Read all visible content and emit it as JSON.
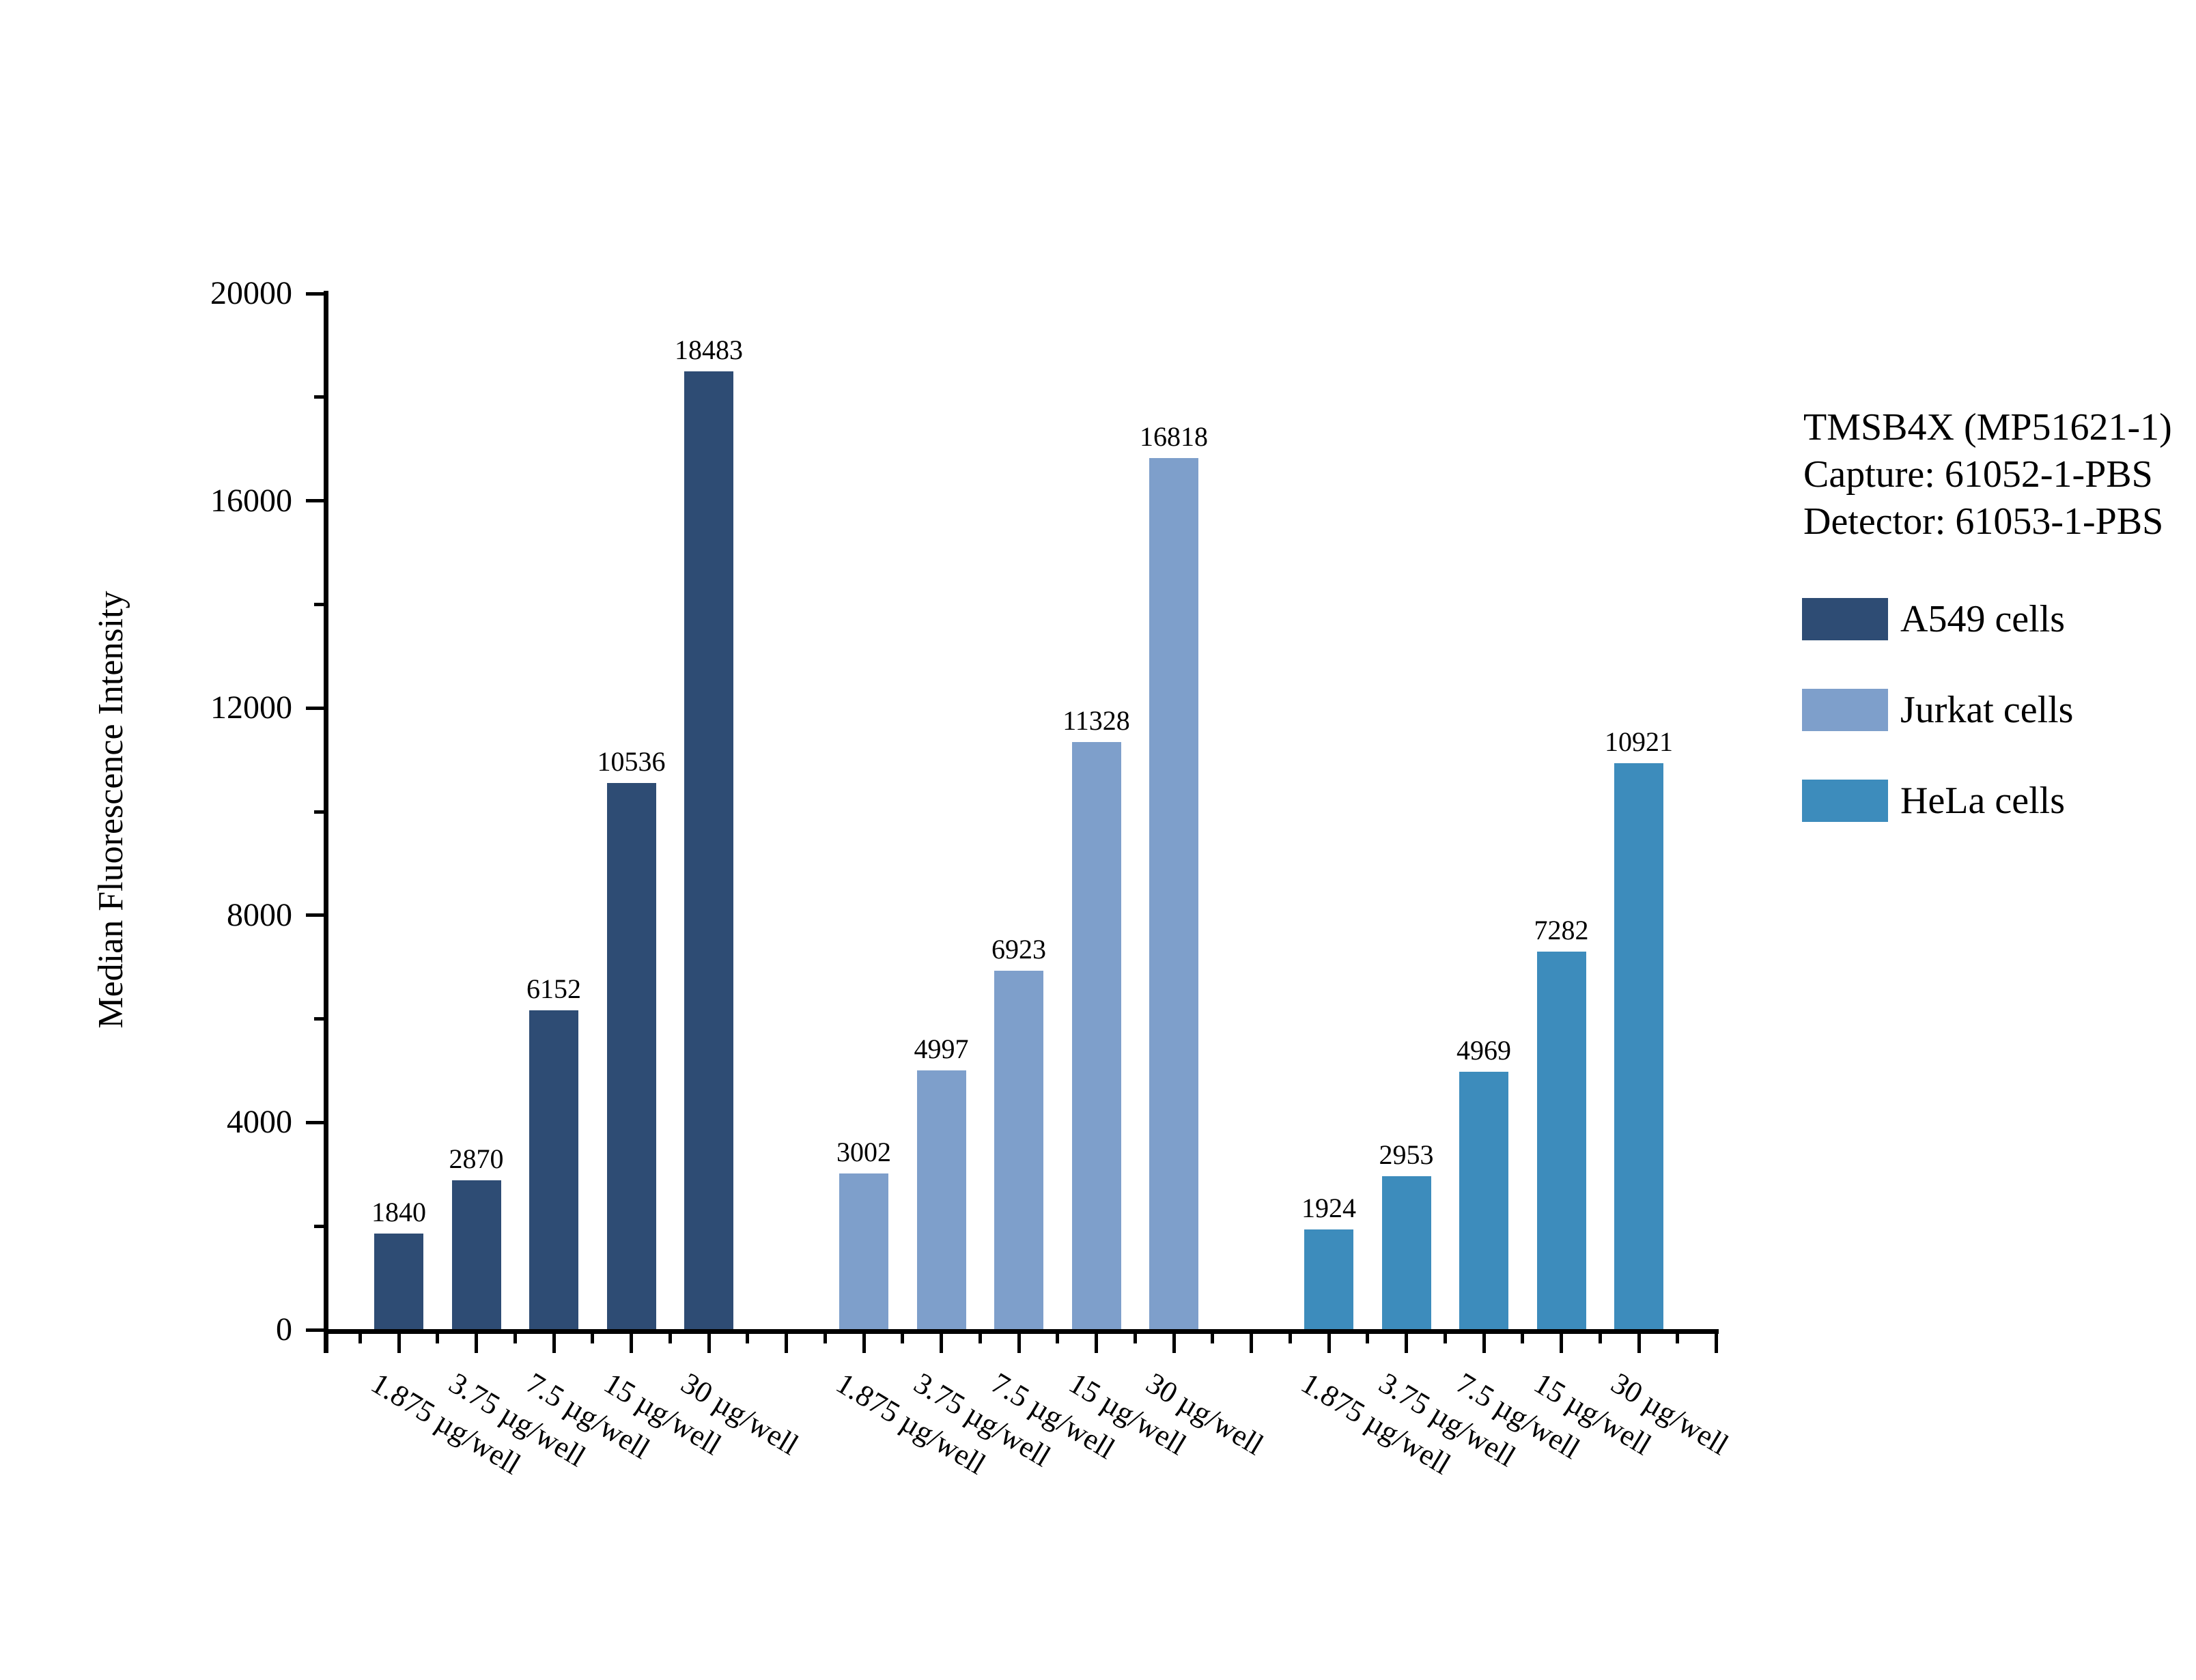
{
  "chart_data": {
    "type": "bar",
    "title": "",
    "xlabel": "",
    "ylabel": "Median Fluorescence Intensity",
    "ylim": [
      0,
      20000
    ],
    "y_major_ticks": [
      0,
      4000,
      8000,
      12000,
      16000,
      20000
    ],
    "y_minor_ticks": [
      2000,
      6000,
      10000,
      14000,
      18000
    ],
    "grid": false,
    "legend_position": "right",
    "bar_value_labels": true,
    "categories": [
      "1.875 µg/well",
      "3.75 µg/well",
      "7.5 µg/well",
      "15 µg/well",
      "30 µg/well"
    ],
    "series": [
      {
        "name": "A549 cells",
        "color": "#2E4C74",
        "values": [
          1840,
          2870,
          6152,
          10536,
          18483
        ]
      },
      {
        "name": "Jurkat cells",
        "color": "#7E9FCB",
        "values": [
          3002,
          4997,
          6923,
          11328,
          16818
        ]
      },
      {
        "name": "HeLa cells",
        "color": "#3D8CBC",
        "values": [
          1924,
          2953,
          4969,
          7282,
          10921
        ]
      }
    ]
  },
  "annotation": {
    "line1": "TMSB4X (MP51621-1)",
    "line2": "Capture: 61052-1-PBS",
    "line3": "Detector: 61053-1-PBS"
  },
  "colors": {
    "axis": "#000000",
    "text": "#000000",
    "background": "#FFFFFF"
  }
}
